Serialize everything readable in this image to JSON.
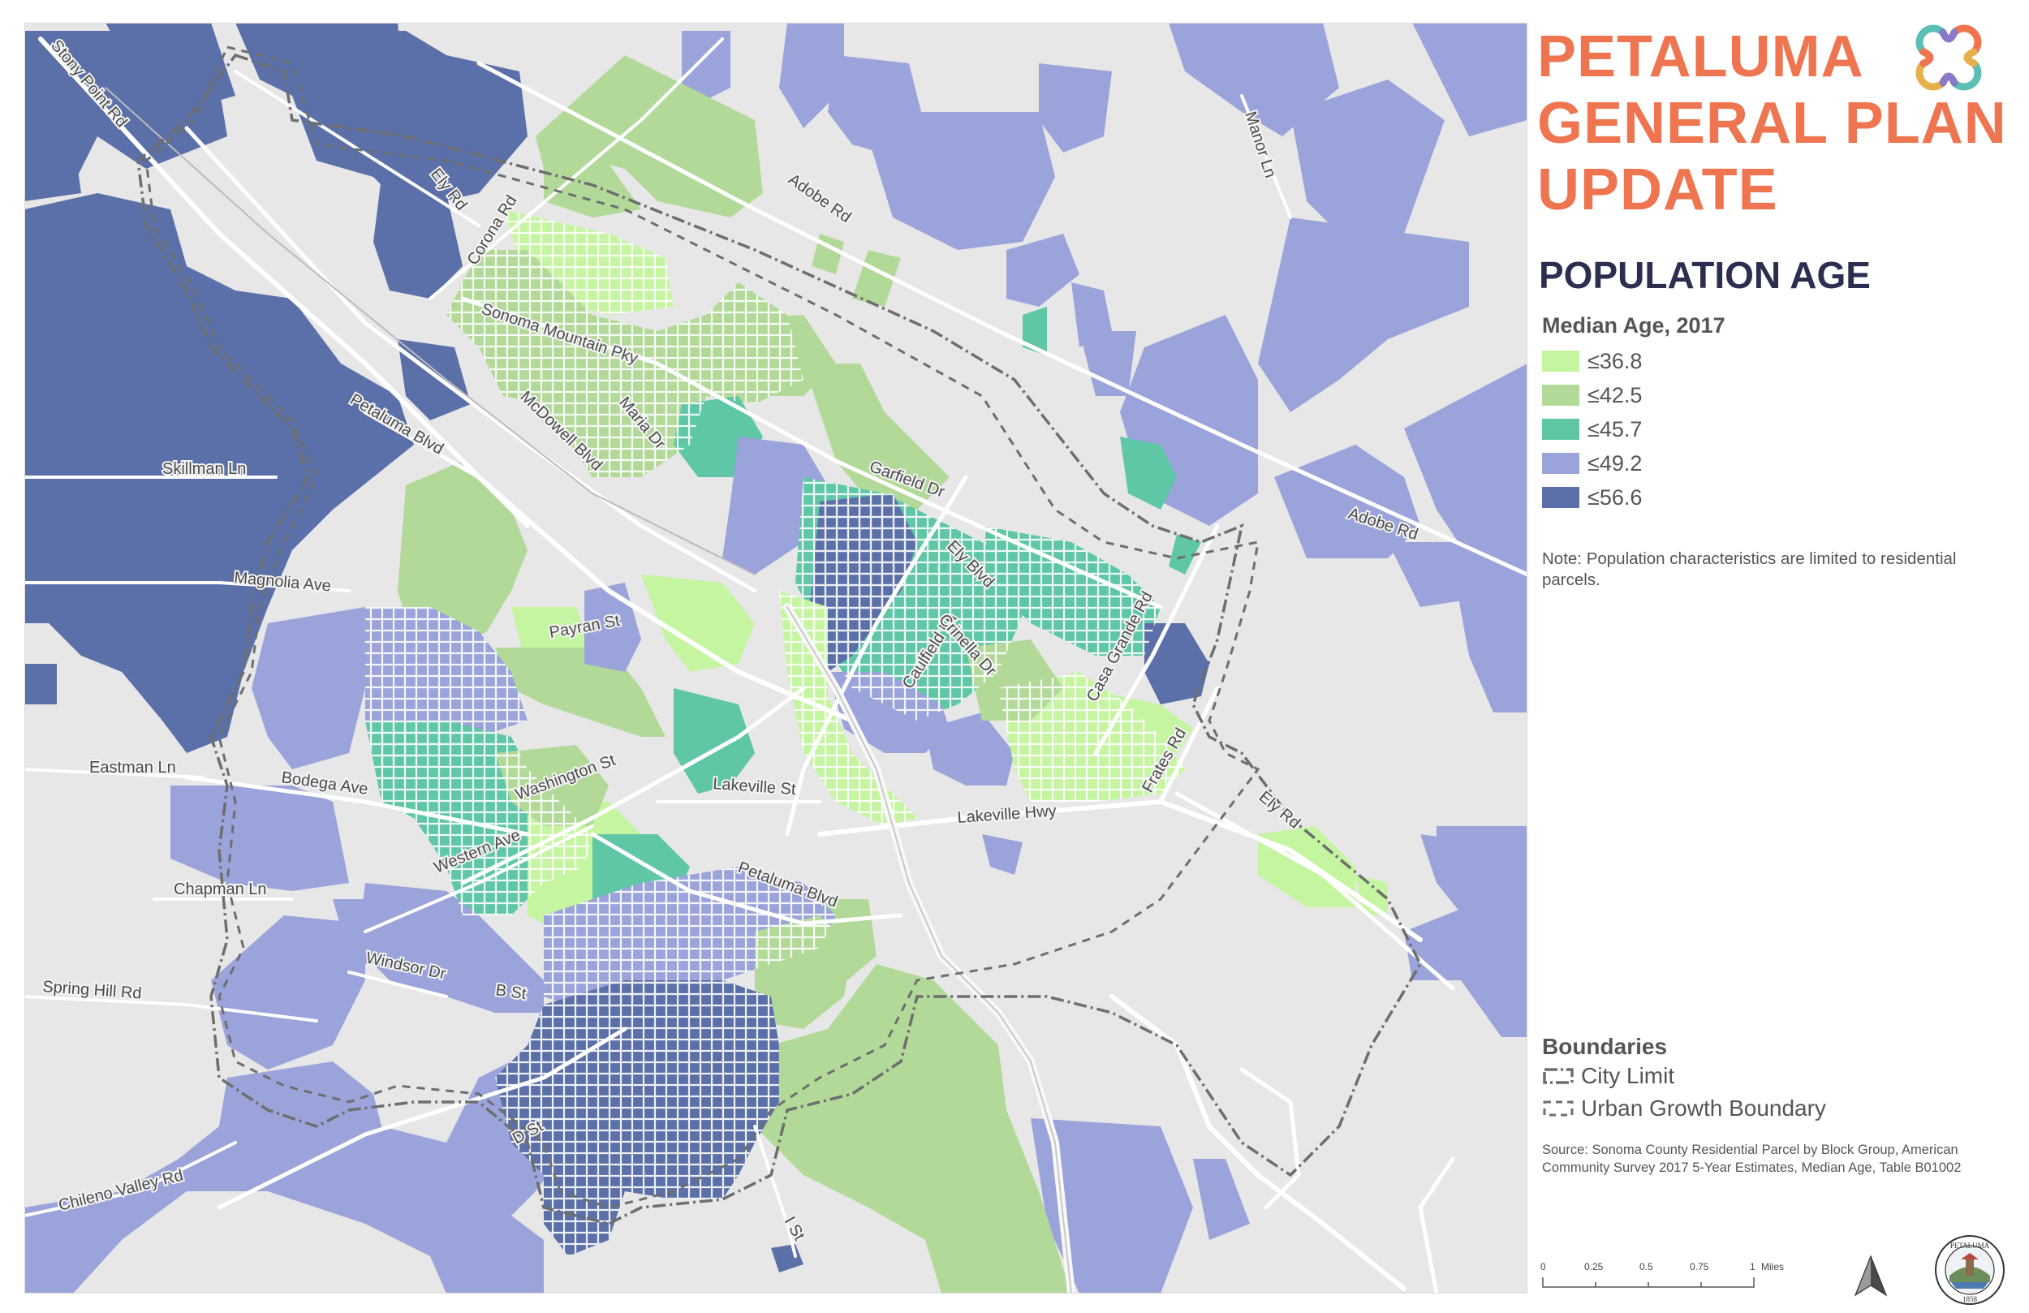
{
  "title": {
    "line1": "PETALUMA",
    "line2": "GENERAL PLAN",
    "line3": "UPDATE"
  },
  "subtitle": "POPULATION AGE",
  "legend": {
    "title": "Median Age, 2017",
    "items": [
      {
        "label": "≤36.8",
        "color": "#c6f5a1"
      },
      {
        "label": "≤42.5",
        "color": "#b3d999"
      },
      {
        "label": "≤45.7",
        "color": "#5fc7a6"
      },
      {
        "label": "≤49.2",
        "color": "#9ba3db"
      },
      {
        "label": "≤56.6",
        "color": "#5b6fa8"
      }
    ]
  },
  "note": "Note: Population characteristics are limited to residential parcels.",
  "boundaries": {
    "title": "Boundaries",
    "city_limit": "City Limit",
    "ugb": "Urban Growth Boundary"
  },
  "source": "Source: Sonoma County Residential Parcel by Block Group, American Community Survey 2017 5-Year Estimates, Median Age, Table B01002",
  "scale": {
    "ticks": [
      "0",
      "0.25",
      "0.5",
      "0.75",
      "1"
    ],
    "unit": "Miles"
  },
  "seal": {
    "name": "PETALUMA",
    "year": "1858"
  },
  "logo_icon": "interlocking-rings-logo-icon",
  "north_arrow_icon": "north-arrow-icon",
  "roads": {
    "stony_point": "Stony Point Rd",
    "ely_n": "Ely Rd",
    "corona": "Corona Rd",
    "adobe_n": "Adobe Rd",
    "manor": "Manor Ln",
    "sonoma_mtn": "Sonoma Mountain Pky",
    "maria": "Maria Dr",
    "mcdowell": "McDowell Blvd",
    "petaluma_n": "Petaluma Blvd",
    "skillman": "Skillman Ln",
    "garfield": "Garfield Dr",
    "adobe_e": "Adobe Rd",
    "magnolia": "Magnolia Ave",
    "ely_blvd": "Ely Blvd",
    "payran": "Payran St",
    "caulfield": "Caulfield Ln",
    "crinella": "Crinella Dr",
    "casa_grande": "Casa Grande Rd",
    "eastman": "Eastman Ln",
    "bodega": "Bodega Ave",
    "washington": "Washington St",
    "lakeville_st": "Lakeville St",
    "frates": "Frates Rd",
    "lakeville_hwy": "Lakeville Hwy",
    "ely_se": "Ely Rd",
    "western": "Western Ave",
    "chapman": "Chapman Ln",
    "petaluma_s": "Petaluma Blvd",
    "windsor": "Windsor Dr",
    "b_st": "B St",
    "spring_hill": "Spring Hill Rd",
    "d_st": "D St",
    "chileno": "Chileno Valley Rd",
    "i_st": "I St"
  }
}
